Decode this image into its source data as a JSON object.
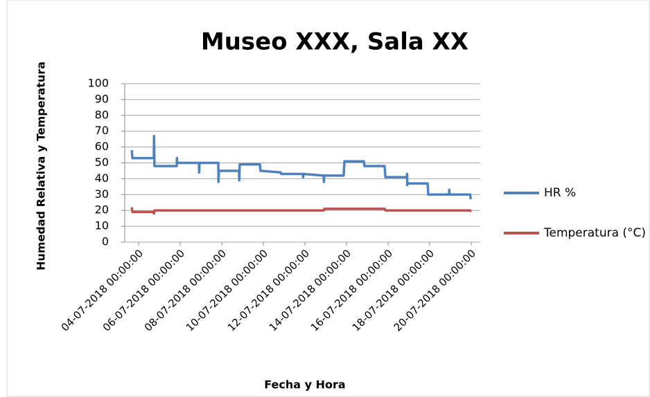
{
  "chart_data": {
    "type": "line",
    "title": "Museo XXX, Sala XX",
    "x_label": "Fecha y Hora",
    "y_label": "Humedad Relativa y Temperatura",
    "x": [
      -0.33,
      -0.3,
      0.73,
      0.74,
      0.76,
      1.83,
      1.84,
      1.86,
      2.9,
      2.91,
      2.93,
      3.83,
      3.84,
      3.86,
      4.83,
      4.84,
      4.86,
      5.83,
      5.86,
      6.83,
      6.86,
      7.9,
      7.91,
      7.93,
      8.9,
      8.91,
      8.93,
      9.86,
      9.9,
      10.83,
      10.86,
      11.83,
      11.87,
      12.9,
      12.91,
      12.92,
      12.93,
      13.9,
      13.93,
      14.93,
      14.94,
      14.96,
      15.95,
      15.97
    ],
    "series": [
      {
        "name": "HR %",
        "color": "#4f81bd",
        "values": [
          58,
          53,
          53,
          67,
          48,
          48,
          53,
          50,
          50,
          44,
          50,
          50,
          38,
          45,
          45,
          39,
          49,
          49,
          45,
          44,
          43,
          43,
          41,
          43,
          42,
          38,
          42,
          42,
          51,
          51,
          48,
          48,
          41,
          41,
          43,
          36,
          37,
          37,
          30,
          30,
          33,
          30,
          30,
          27
        ]
      },
      {
        "name": "Temperatura (°C)",
        "color": "#c0504d",
        "values": [
          22,
          19,
          19,
          18,
          20,
          20,
          20,
          20,
          20,
          20,
          20,
          20,
          20,
          20,
          20,
          20,
          20,
          20,
          20,
          20,
          20,
          20,
          20,
          20,
          20,
          20,
          21,
          21,
          21,
          21,
          21,
          21,
          20,
          20,
          20,
          20,
          20,
          20,
          20,
          20,
          20,
          20,
          20,
          19
        ]
      }
    ],
    "xlim": [
      -0.67,
      16.43
    ],
    "xticks": [
      {
        "value": 0,
        "label": "04-07-2018 00:00:00"
      },
      {
        "value": 2,
        "label": "06-07-2018 00:00:00"
      },
      {
        "value": 4,
        "label": "08-07-2018 00:00:00"
      },
      {
        "value": 6,
        "label": "10-07-2018 00:00:00"
      },
      {
        "value": 8,
        "label": "12-07-2018 00:00:00"
      },
      {
        "value": 10,
        "label": "14-07-2018 00:00:00"
      },
      {
        "value": 12,
        "label": "16-07-2018 00:00:00"
      },
      {
        "value": 14,
        "label": "18-07-2018 00:00:00"
      },
      {
        "value": 16,
        "label": "20-07-2018 00:00:00"
      }
    ],
    "ylim": [
      0,
      100
    ],
    "yticks": [
      0,
      10,
      20,
      30,
      40,
      50,
      60,
      70,
      80,
      90,
      100
    ],
    "grid": true,
    "legend": "right"
  }
}
